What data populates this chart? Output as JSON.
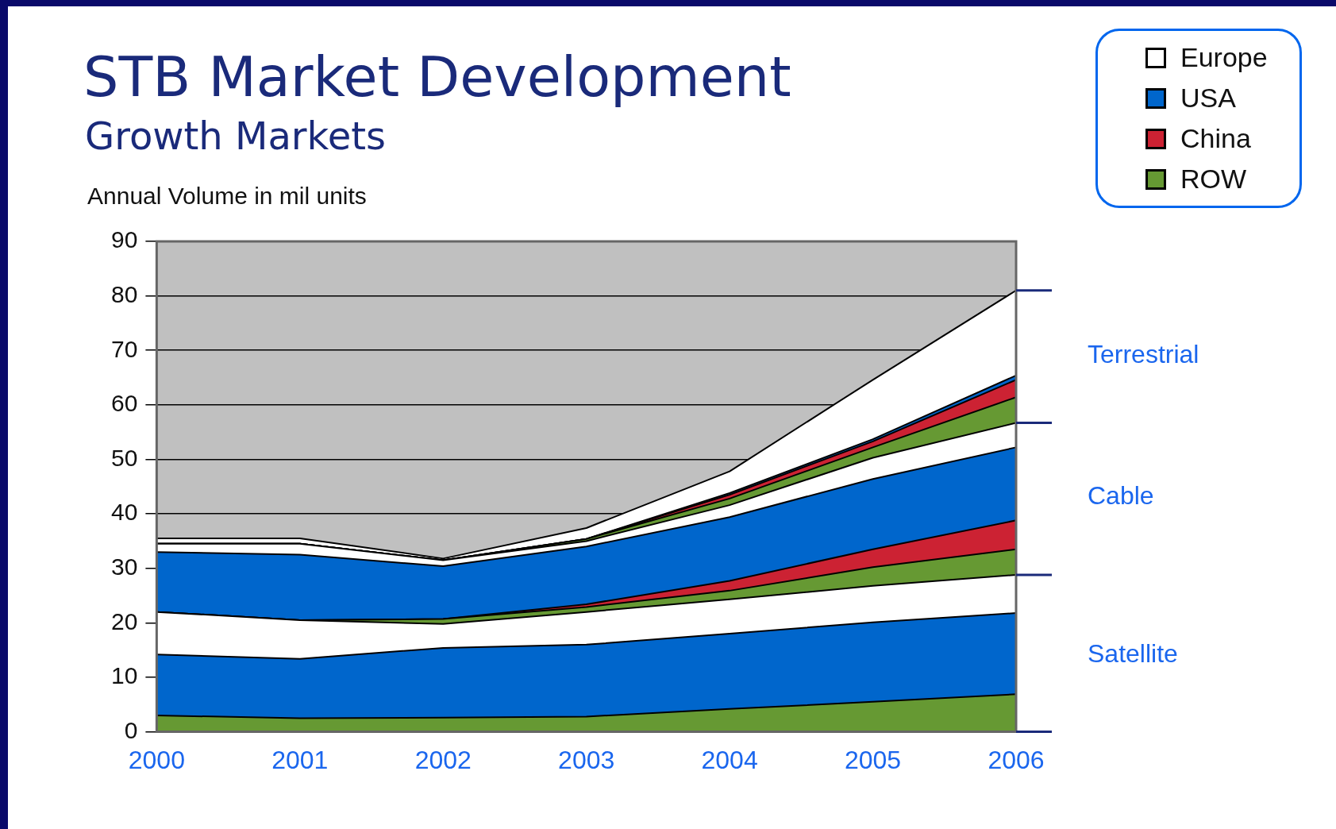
{
  "chart_data": {
    "type": "area",
    "stacked": true,
    "title": "STB Market Development",
    "subtitle": "Growth Markets",
    "ylabel": "Annual Volume in mil units",
    "categories": [
      "2000",
      "2001",
      "2002",
      "2003",
      "2004",
      "2005",
      "2006"
    ],
    "ylim": [
      0,
      90
    ],
    "yticks": [
      0,
      10,
      20,
      30,
      40,
      50,
      60,
      70,
      80,
      90
    ],
    "grid": "y",
    "legend": "top right",
    "series": [
      {
        "name": "ROW",
        "color": "#669933",
        "values": [
          3,
          2.5,
          2.6,
          2.8,
          4.2,
          5.5,
          6.9
        ]
      },
      {
        "color": "#0066cc",
        "values": [
          11.2,
          10.9,
          12.8,
          13.2,
          13.8,
          14.6,
          14.9
        ]
      },
      {
        "color": "#ffffff",
        "values": [
          7.8,
          7.1,
          4.4,
          6,
          6.3,
          6.7,
          7
        ]
      },
      {
        "color": "#669933",
        "values": [
          0,
          0,
          0.9,
          0.9,
          1.6,
          3.4,
          4.7
        ]
      },
      {
        "name": "China",
        "color": "#cc2233",
        "values": [
          0,
          0,
          0,
          0.5,
          1.8,
          3.3,
          5.3
        ]
      },
      {
        "name": "USA",
        "color": "#0066cc",
        "values": [
          11,
          12,
          9.7,
          10.6,
          11.7,
          12.9,
          13.4
        ]
      },
      {
        "color": "#ffffff",
        "values": [
          1.5,
          2,
          1.1,
          1,
          2.2,
          3.9,
          4.5
        ]
      },
      {
        "color": "#669933",
        "values": [
          0,
          0,
          0,
          0.4,
          1.2,
          1.9,
          4.7
        ]
      },
      {
        "color": "#cc2233",
        "values": [
          0,
          0,
          0,
          0,
          0.7,
          1.1,
          3.2
        ]
      },
      {
        "color": "#0066cc",
        "values": [
          0,
          0,
          0,
          0,
          0.3,
          0.4,
          0.8
        ]
      },
      {
        "name": "Europe",
        "color": "#ffffff",
        "values": [
          1,
          1,
          0.3,
          2,
          4,
          10.9,
          15.6
        ]
      }
    ],
    "annotations": [
      {
        "text": "Satellite",
        "x": "2006",
        "y": 14
      },
      {
        "text": "Cable",
        "x": "2006",
        "y": 43
      },
      {
        "text": "Terrestrial",
        "x": "2006",
        "y": 69
      }
    ]
  }
}
